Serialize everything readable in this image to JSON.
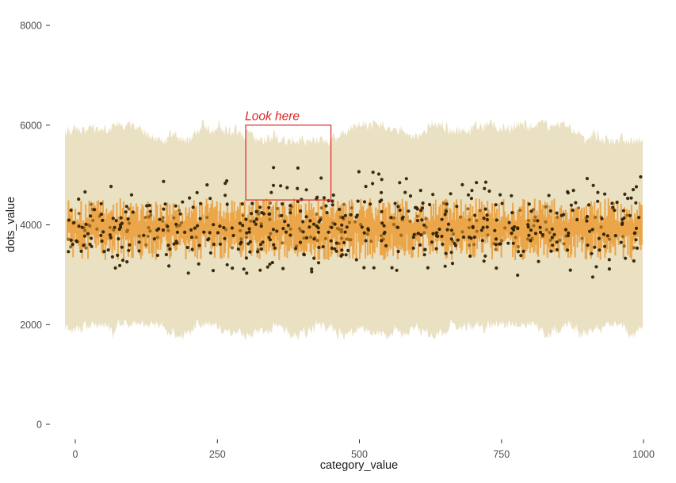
{
  "chart_data": {
    "type": "scatter",
    "xlabel": "category_value",
    "ylabel": "dots_value",
    "x_ticks": [
      "0",
      "250",
      "500",
      "750",
      "1000"
    ],
    "x_tick_values": [
      0,
      250,
      500,
      750,
      1000
    ],
    "y_ticks": [
      "0",
      "2000",
      "4000",
      "6000",
      "8000"
    ],
    "y_tick_values": [
      0,
      2000,
      4000,
      6000,
      8000
    ],
    "xlim": [
      -60,
      1062
    ],
    "ylim": [
      -700,
      8700
    ],
    "grid": false,
    "legend": false,
    "colors": {
      "background": "#FFFFFF",
      "ribbon": "#EAE0C2",
      "linerange": "#EBA64A",
      "points": "#2F2207",
      "points_muted": "#A06A1E",
      "annotation": "#E02525",
      "axis_text": "#4D4D4D",
      "axis_title": "#1A1A1A",
      "tick_mark": "#333333"
    },
    "layers": [
      {
        "kind": "ribbon",
        "description": "jagged tan noise band spanning full x range",
        "x_min": -18,
        "x_max": 999,
        "ymax_mean": 5850,
        "ymax_jitter": [
          5570,
          6120
        ],
        "ymin_mean": 1900,
        "ymin_jitter": [
          1680,
          2110
        ]
      },
      {
        "kind": "linerange",
        "description": "dense vertical orange bars around the center",
        "x_min": -14,
        "x_max": 997,
        "count": 500,
        "center": 3940,
        "half_min": 90,
        "half_max_top": 590,
        "half_max_bottom": 650
      },
      {
        "kind": "points",
        "description": "dark brown jittered dots, approx normal around 3950",
        "x_min": -14,
        "x_max": 999,
        "count_dark": 470,
        "count_muted": 160,
        "y_mean": 3950,
        "y_sd": 480,
        "y_min": 2950,
        "y_max": 5150,
        "muted_mean": 3940,
        "muted_sd": 300,
        "muted_min": 3480,
        "muted_max": 4440,
        "radius_px": 2.1
      }
    ],
    "annotation": {
      "label": "Look here",
      "rect": {
        "x0": 300,
        "x1": 450,
        "y0": 4500,
        "y1": 6000
      }
    }
  }
}
